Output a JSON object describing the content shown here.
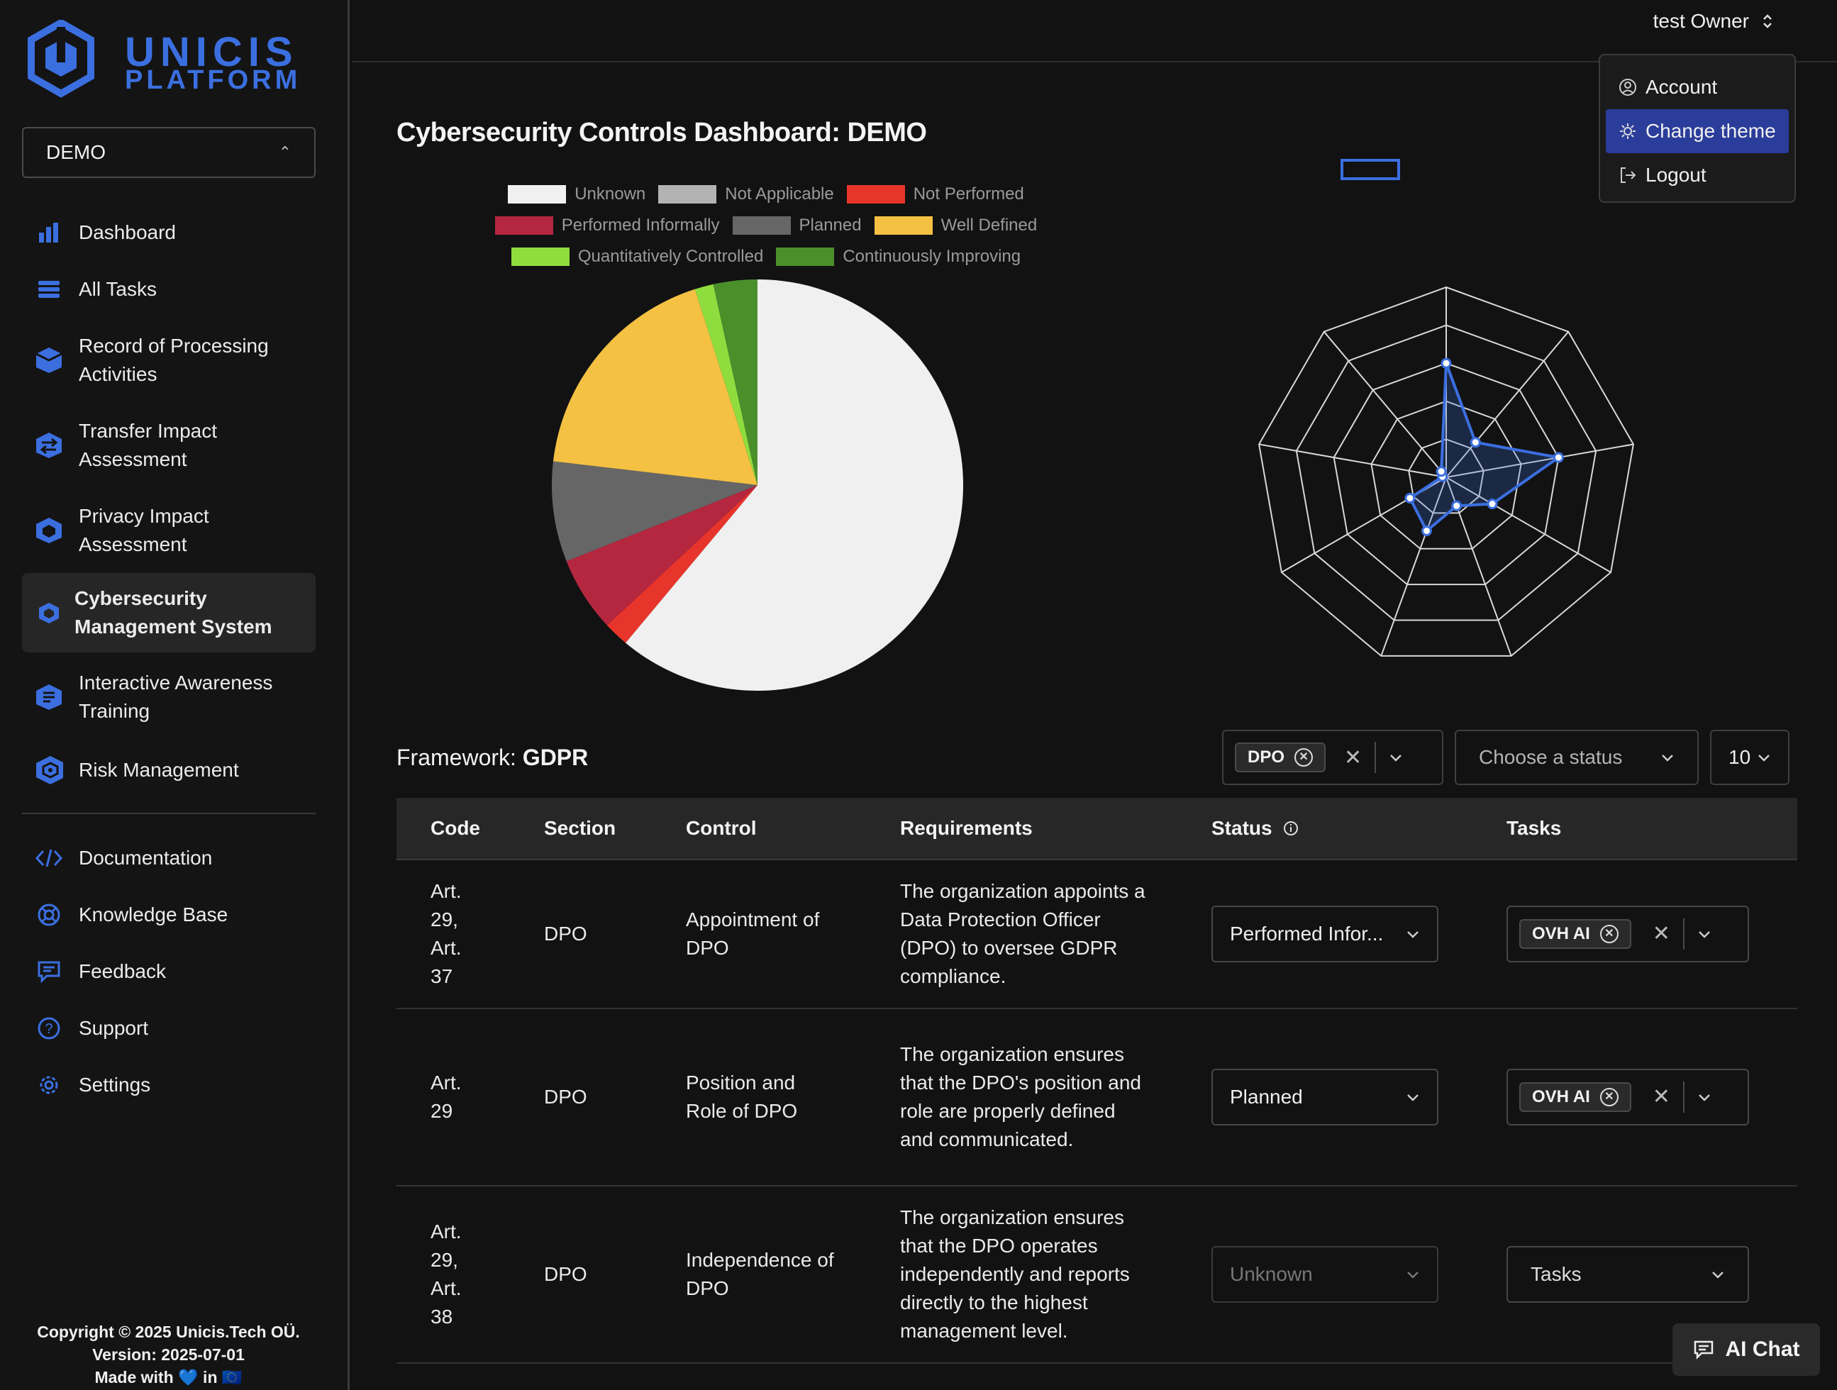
{
  "sidebar": {
    "logo_line1": "UNICIS",
    "logo_line2": "PLATFORM",
    "org_selector": "DEMO",
    "nav": [
      {
        "label": "Dashboard",
        "icon": "bar-chart-icon"
      },
      {
        "label": "All Tasks",
        "icon": "list-icon"
      },
      {
        "label": "Record of Processing Activities",
        "icon": "cube-stack-icon"
      },
      {
        "label": "Transfer Impact Assessment",
        "icon": "transfer-icon"
      },
      {
        "label": "Privacy Impact Assessment",
        "icon": "hexagon-icon"
      },
      {
        "label": "Cybersecurity Management System",
        "icon": "shield-hex-icon",
        "active": true
      },
      {
        "label": "Interactive Awareness Training",
        "icon": "training-icon"
      },
      {
        "label": "Risk Management",
        "icon": "risk-icon"
      }
    ],
    "nav_secondary": [
      {
        "label": "Documentation",
        "icon": "code-icon"
      },
      {
        "label": "Knowledge Base",
        "icon": "lifebuoy-icon"
      },
      {
        "label": "Feedback",
        "icon": "message-icon"
      },
      {
        "label": "Support",
        "icon": "question-icon"
      },
      {
        "label": "Settings",
        "icon": "gear-icon"
      }
    ],
    "footer_line1": "Copyright © 2025 Unicis.Tech OÜ.",
    "footer_line2": "Version: 2025-07-01",
    "footer_line3": "Made with 💙 in 🇪🇺"
  },
  "header": {
    "user_name": "test Owner",
    "menu": [
      "Account",
      "Change theme",
      "Logout"
    ]
  },
  "main": {
    "title": "Cybersecurity Controls Dashboard: DEMO",
    "framework_label": "Framework:",
    "framework_value": "GDPR",
    "filter_chip": "DPO",
    "status_placeholder": "Choose a status",
    "per_page": "10",
    "columns": [
      "Code",
      "Section",
      "Control",
      "Requirements",
      "Status",
      "Tasks"
    ],
    "rows": [
      {
        "code": "Art. 29, Art. 37",
        "section": "DPO",
        "control": "Appointment of DPO",
        "requirements": "The organization appoints a Data Protection Officer (DPO) to oversee GDPR compliance.",
        "status": "Performed Infor...",
        "task": "OVH AI"
      },
      {
        "code": "Art. 29",
        "section": "DPO",
        "control": "Position and Role of DPO",
        "requirements": "The organization ensures that the DPO's position and role are properly defined and communicated.",
        "status": "Planned",
        "task": "OVH AI"
      },
      {
        "code": "Art. 29, Art. 38",
        "section": "DPO",
        "control": "Independence of DPO",
        "requirements": "The organization ensures that the DPO operates independently and reports directly to the highest management level.",
        "status": "Unknown",
        "task": "Tasks"
      }
    ],
    "ai_chat": "AI Chat"
  },
  "chart_data": [
    {
      "type": "pie",
      "legend": [
        "Unknown",
        "Not Applicable",
        "Not Performed",
        "Performed Informally",
        "Planned",
        "Well Defined",
        "Quantitatively Controlled",
        "Continuously Improving"
      ],
      "colors": [
        "#f0f0f0",
        "#b3b3b3",
        "#e8352b",
        "#b5263f",
        "#666666",
        "#f4c143",
        "#8fdc3f",
        "#4b8f2b"
      ],
      "values": [
        62,
        0,
        2,
        6,
        8,
        18.5,
        1.5,
        3.5
      ]
    },
    {
      "type": "radar",
      "axes": 9,
      "rings": 5,
      "max": 5,
      "values": [
        3,
        1.2,
        3,
        1.4,
        0.8,
        1.5,
        1.1,
        0.1,
        0.2
      ],
      "color": "#3b6fe0"
    }
  ]
}
